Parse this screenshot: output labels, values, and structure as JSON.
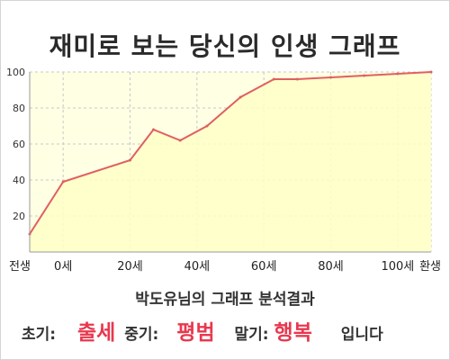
{
  "title": "재미로 보는 당신의 인생 그래프",
  "chart_data": {
    "type": "area",
    "x": [
      -10,
      0,
      20,
      27,
      35,
      43,
      53,
      63,
      70,
      80,
      90,
      100,
      110
    ],
    "y": [
      10,
      39,
      51,
      68,
      62,
      70,
      86,
      96,
      96,
      97,
      98,
      99,
      100
    ],
    "x_ticks": [
      {
        "x": -10,
        "label": "전생"
      },
      {
        "x": 0,
        "label": "0세"
      },
      {
        "x": 20,
        "label": "20세"
      },
      {
        "x": 40,
        "label": "40세"
      },
      {
        "x": 60,
        "label": "60세"
      },
      {
        "x": 80,
        "label": "80세"
      },
      {
        "x": 100,
        "label": "100세"
      },
      {
        "x": 110,
        "label": "환생"
      }
    ],
    "y_ticks": [
      20,
      40,
      60,
      80,
      100
    ],
    "xlim": [
      -10,
      110
    ],
    "ylim": [
      0,
      100
    ],
    "grid": true,
    "colors": {
      "line": "#e06060",
      "fill": "#ffffc8",
      "grid": "#c8c8c8"
    }
  },
  "analysis_title": "박도유님의 그래프 분석결과",
  "summary": {
    "early_label": "초기:",
    "early_value": "출세",
    "mid_label": "중기:",
    "mid_value": "평범",
    "late_label": "말기:",
    "late_value": "행복",
    "ending": "입니다",
    "highlight_color": "#e8384f"
  }
}
